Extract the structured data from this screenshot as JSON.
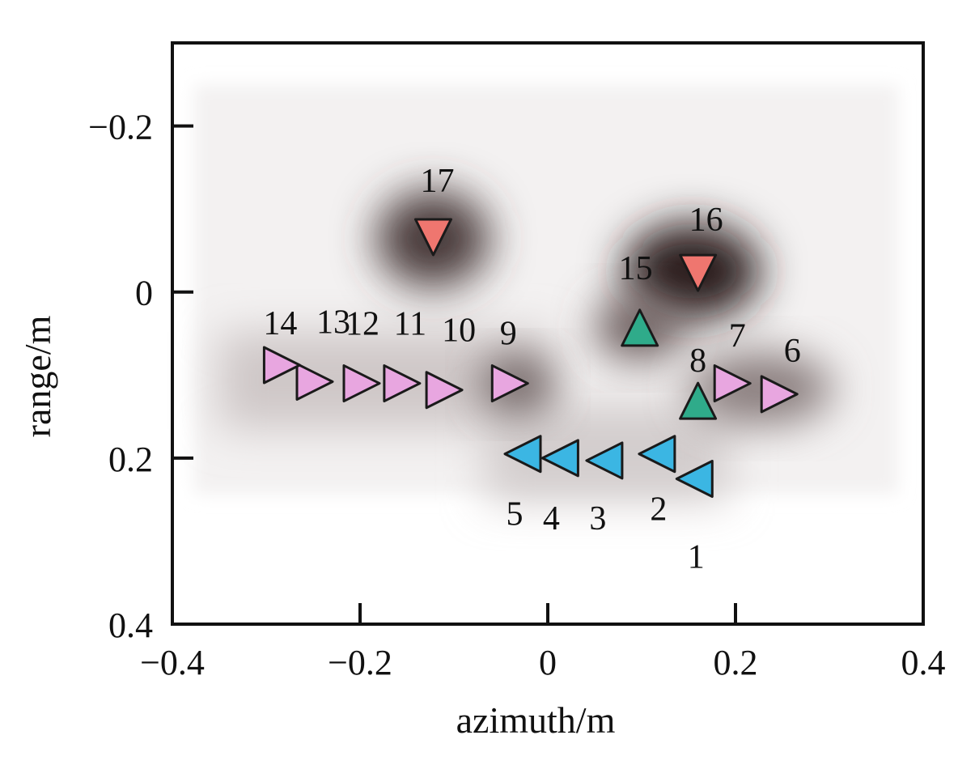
{
  "chart_data": {
    "type": "scatter",
    "xlabel": "azimuth/m",
    "ylabel": "range/m",
    "xlim": [
      -0.4,
      0.4
    ],
    "ylim": [
      -0.3,
      0.4
    ],
    "y_inverted": true,
    "grid": false,
    "background": "grayscale SAR intensity image",
    "xticks": [
      -0.4,
      -0.2,
      0,
      0.2,
      0.4
    ],
    "xtick_labels": [
      "−0.4",
      "−0.2",
      "0",
      "0.2",
      "0.4"
    ],
    "yticks": [
      -0.2,
      0,
      0.2,
      0.4
    ],
    "ytick_labels": [
      "−0.2",
      "0",
      "0.2",
      "0.4"
    ],
    "colors": {
      "right": "#e8a6e0",
      "left": "#3bb6e3",
      "up": "#2fab8a",
      "down": "#ef766f"
    },
    "points": [
      {
        "label": "1",
        "x": 0.158,
        "y": 0.225,
        "marker": "left"
      },
      {
        "label": "2",
        "x": 0.118,
        "y": 0.195,
        "marker": "left"
      },
      {
        "label": "3",
        "x": 0.062,
        "y": 0.203,
        "marker": "left"
      },
      {
        "label": "4",
        "x": 0.015,
        "y": 0.2,
        "marker": "left"
      },
      {
        "label": "5",
        "x": -0.025,
        "y": 0.195,
        "marker": "left"
      },
      {
        "label": "6",
        "x": 0.245,
        "y": 0.123,
        "marker": "right"
      },
      {
        "label": "7",
        "x": 0.195,
        "y": 0.11,
        "marker": "right"
      },
      {
        "label": "8",
        "x": 0.16,
        "y": 0.133,
        "marker": "up"
      },
      {
        "label": "9",
        "x": -0.042,
        "y": 0.11,
        "marker": "right"
      },
      {
        "label": "10",
        "x": -0.112,
        "y": 0.118,
        "marker": "right"
      },
      {
        "label": "11",
        "x": -0.157,
        "y": 0.11,
        "marker": "right"
      },
      {
        "label": "12",
        "x": -0.2,
        "y": 0.11,
        "marker": "right"
      },
      {
        "label": "13",
        "x": -0.25,
        "y": 0.108,
        "marker": "right"
      },
      {
        "label": "14",
        "x": -0.285,
        "y": 0.088,
        "marker": "right"
      },
      {
        "label": "15",
        "x": 0.098,
        "y": 0.045,
        "marker": "up"
      },
      {
        "label": "16",
        "x": 0.16,
        "y": -0.025,
        "marker": "down"
      },
      {
        "label": "17",
        "x": -0.122,
        "y": -0.068,
        "marker": "down"
      }
    ]
  }
}
